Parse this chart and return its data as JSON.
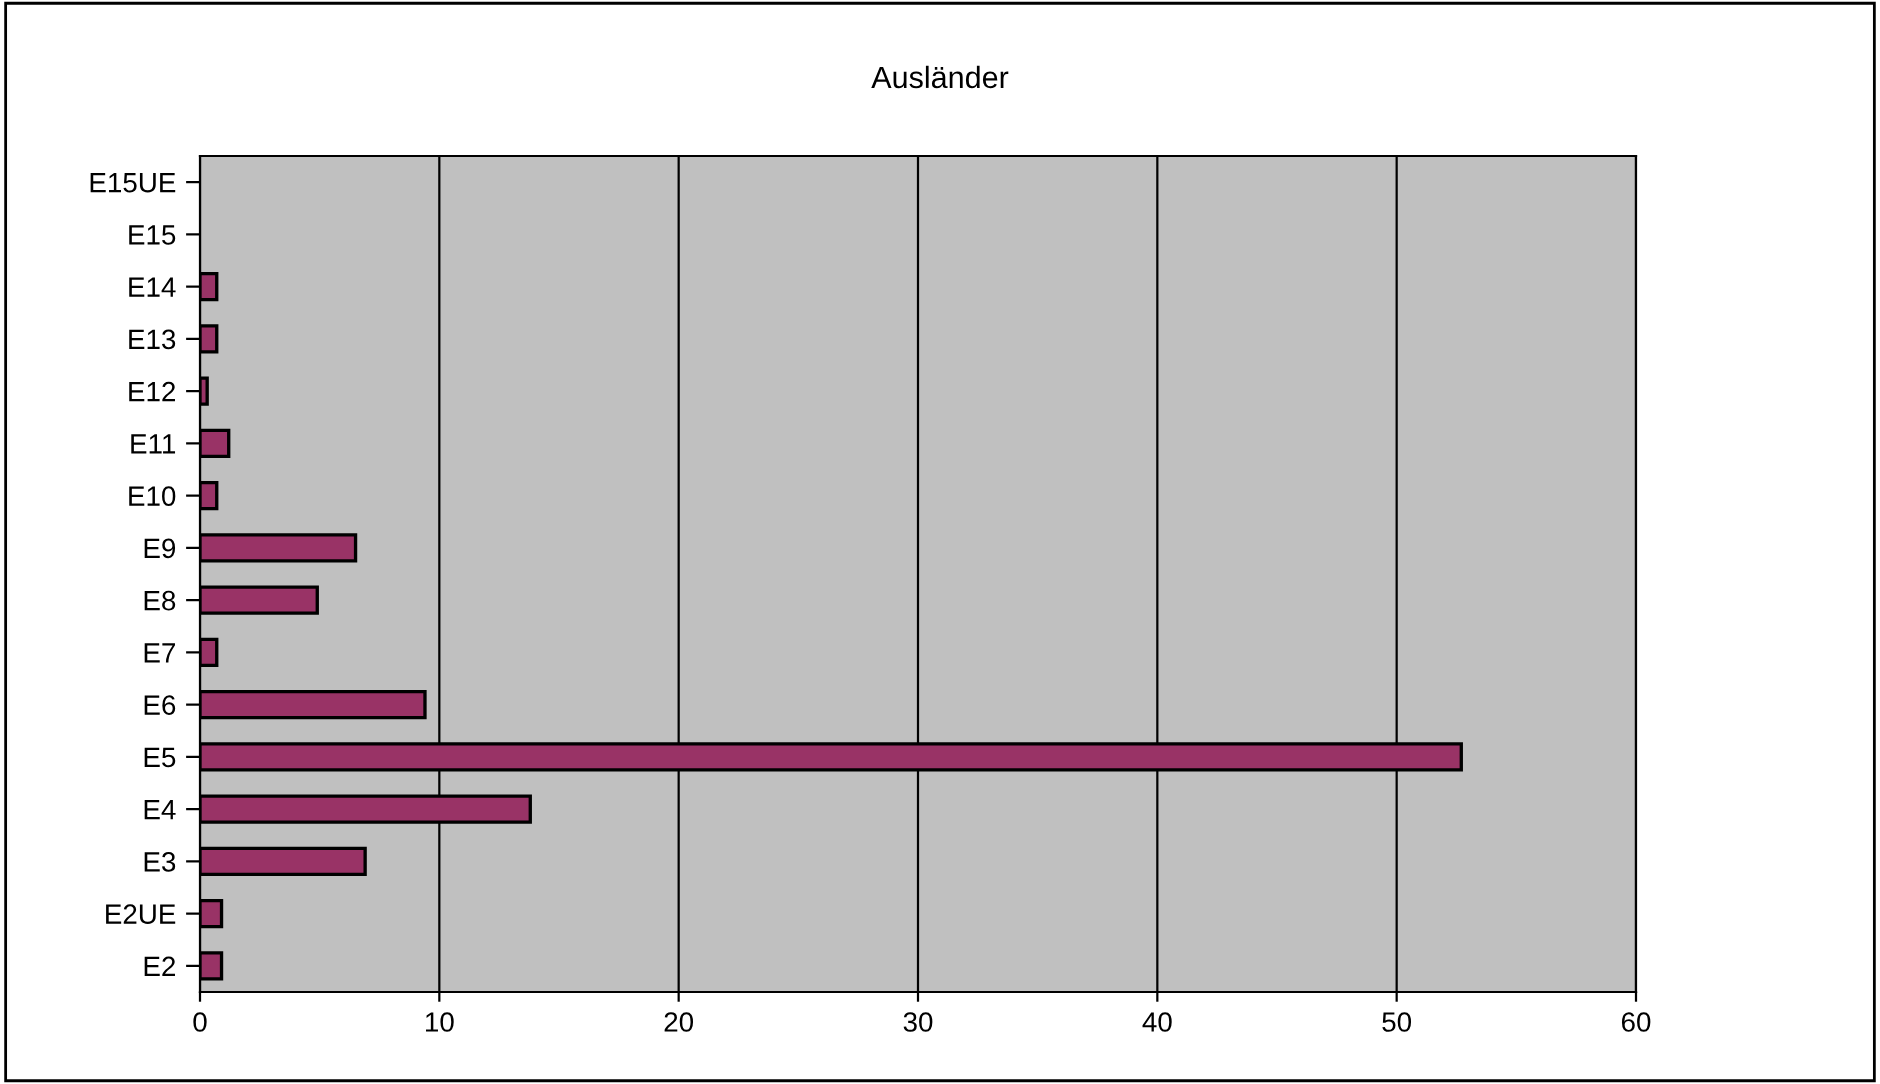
{
  "chart_data": {
    "type": "bar",
    "orientation": "horizontal",
    "title": "Ausländer",
    "categories": [
      "E15UE",
      "E15",
      "E14",
      "E13",
      "E12",
      "E11",
      "E10",
      "E9",
      "E8",
      "E7",
      "E6",
      "E5",
      "E4",
      "E3",
      "E2UE",
      "E2"
    ],
    "values": [
      0,
      0,
      0.7,
      0.7,
      0.3,
      1.2,
      0.7,
      6.5,
      4.9,
      0.7,
      9.4,
      52.7,
      13.8,
      6.9,
      0.9,
      0.9
    ],
    "color": "#993366",
    "xlim": [
      0,
      60
    ],
    "xticks": [
      0,
      10,
      20,
      30,
      40,
      50,
      60
    ],
    "grid": "x",
    "legend": false
  }
}
